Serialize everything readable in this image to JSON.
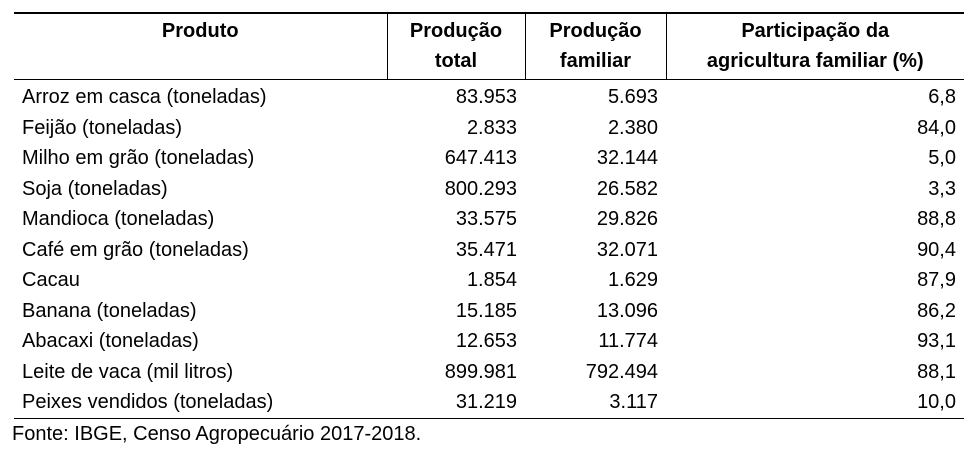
{
  "table": {
    "headers": [
      [
        "Produto"
      ],
      [
        "Produção",
        "total"
      ],
      [
        "Produção",
        "familiar"
      ],
      [
        "Participação da",
        "agricultura familiar (%)"
      ]
    ],
    "rows": [
      [
        "Arroz em casca (toneladas)",
        "83.953",
        "5.693",
        "6,8"
      ],
      [
        "Feijão (toneladas)",
        "2.833",
        "2.380",
        "84,0"
      ],
      [
        "Milho em grão (toneladas)",
        "647.413",
        "32.144",
        "5,0"
      ],
      [
        "Soja (toneladas)",
        "800.293",
        "26.582",
        "3,3"
      ],
      [
        "Mandioca (toneladas)",
        "33.575",
        "29.826",
        "88,8"
      ],
      [
        "Café em grão (toneladas)",
        "35.471",
        "32.071",
        "90,4"
      ],
      [
        "Cacau",
        "1.854",
        "1.629",
        "87,9"
      ],
      [
        "Banana (toneladas)",
        "15.185",
        "13.096",
        "86,2"
      ],
      [
        "Abacaxi (toneladas)",
        "12.653",
        "11.774",
        "93,1"
      ],
      [
        "Leite de vaca (mil litros)",
        "899.981",
        "792.494",
        "88,1"
      ],
      [
        "Peixes vendidos (toneladas)",
        "31.219",
        "3.117",
        "10,0"
      ]
    ]
  },
  "source": "Fonte: IBGE, Censo Agropecuário 2017-2018."
}
